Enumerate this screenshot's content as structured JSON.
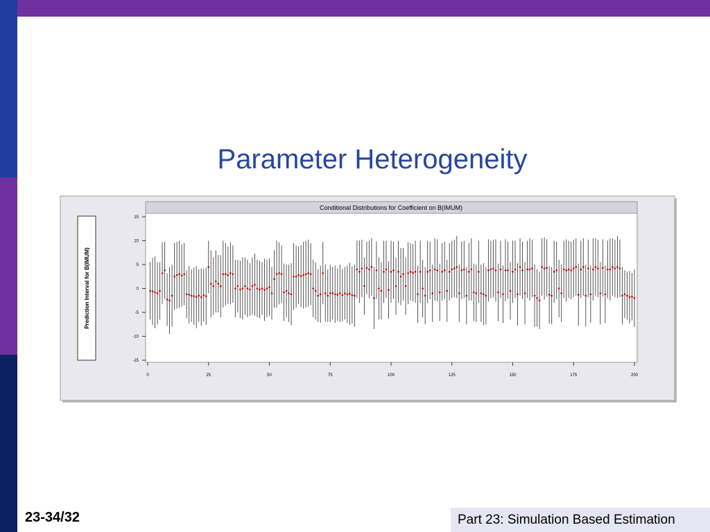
{
  "slide": {
    "title": "Parameter Heterogeneity",
    "page": "23-34/32",
    "footer": "Part 23: Simulation Based Estimation"
  },
  "chart_data": {
    "type": "errorbar",
    "title": "Conditional Distributions for Coefficient on B(IMUM)",
    "ylabel": "Prediction Interval for B(IMUM)",
    "color": "#404040",
    "marker_color": "#c00000",
    "xlim": [
      0,
      200
    ],
    "xticks": [
      0,
      25,
      50,
      75,
      100,
      125,
      150,
      175,
      200
    ],
    "ylim": [
      -15,
      15
    ],
    "yticks": [
      -15,
      -10,
      -5,
      0,
      5,
      10,
      15
    ],
    "x": [
      1,
      2,
      3,
      4,
      5,
      6,
      7,
      8,
      9,
      10,
      11,
      12,
      13,
      14,
      15,
      16,
      17,
      18,
      19,
      20,
      21,
      22,
      23,
      24,
      25,
      26,
      27,
      28,
      29,
      30,
      31,
      32,
      33,
      34,
      35,
      36,
      37,
      38,
      39,
      40,
      41,
      42,
      43,
      44,
      45,
      46,
      47,
      48,
      49,
      50,
      51,
      52,
      53,
      54,
      55,
      56,
      57,
      58,
      59,
      60,
      61,
      62,
      63,
      64,
      65,
      66,
      67,
      68,
      69,
      70,
      71,
      72,
      73,
      74,
      75,
      76,
      77,
      78,
      79,
      80,
      81,
      82,
      83,
      84,
      85,
      86,
      87,
      88,
      89,
      90,
      91,
      92,
      93,
      94,
      95,
      96,
      97,
      98,
      99,
      100,
      101,
      102,
      103,
      104,
      105,
      106,
      107,
      108,
      109,
      110,
      111,
      112,
      113,
      114,
      115,
      116,
      117,
      118,
      119,
      120,
      121,
      122,
      123,
      124,
      125,
      126,
      127,
      128,
      129,
      130,
      131,
      132,
      133,
      134,
      135,
      136,
      137,
      138,
      139,
      140,
      141,
      142,
      143,
      144,
      145,
      146,
      147,
      148,
      149,
      150,
      151,
      152,
      153,
      154,
      155,
      156,
      157,
      158,
      159,
      160,
      161,
      162,
      163,
      164,
      165,
      166,
      167,
      168,
      169,
      170,
      171,
      172,
      173,
      174,
      175,
      176,
      177,
      178,
      179,
      180,
      181,
      182,
      183,
      184,
      185,
      186,
      187,
      188,
      189,
      190,
      191,
      192,
      193,
      194,
      195,
      196,
      197,
      198,
      199,
      200
    ],
    "values": [
      -0.5,
      -0.6,
      -0.8,
      -1,
      -0.5,
      3.2,
      3.8,
      -2.3,
      -2.5,
      -1.5,
      2.5,
      2.8,
      3,
      2.7,
      3,
      -1.2,
      -1.3,
      -1.5,
      -1.6,
      -1.8,
      -1.5,
      -1.8,
      -1.4,
      -1.6,
      4.5,
      1,
      0.5,
      1.5,
      1,
      0.5,
      3,
      3,
      2.8,
      3.2,
      3,
      0,
      0.5,
      -0.2,
      0,
      0.5,
      0,
      -0.2,
      0.5,
      0.8,
      0,
      -0.2,
      0,
      -0.3,
      0,
      0.3,
      -1,
      2,
      3,
      3.2,
      3,
      -0.8,
      -0.5,
      -1,
      -1.2,
      2.5,
      2.5,
      2.8,
      2.6,
      2.8,
      3,
      3.2,
      3,
      0,
      -0.5,
      -1.5,
      -1.2,
      3.2,
      -1,
      -1.5,
      -1,
      -1,
      -1.2,
      -1.3,
      -1,
      -1.4,
      -1,
      -1.2,
      -1.1,
      -1.4,
      -1.5,
      4,
      3.5,
      4.2,
      0.5,
      4.3,
      4,
      4.5,
      -2,
      3.8,
      0,
      -0.5,
      3.5,
      4,
      -0.3,
      3.5,
      3.8,
      0.5,
      3.5,
      2.5,
      3,
      0.5,
      3.2,
      3.5,
      3.3,
      3.5,
      -1.2,
      3.5,
      0,
      -1.5,
      3.5,
      3.8,
      -1,
      4,
      3.8,
      -0.8,
      3.5,
      3.8,
      -0.5,
      3.5,
      4,
      4.2,
      4.5,
      -1,
      3.8,
      4,
      -1.5,
      3.5,
      4,
      -0.8,
      -1,
      3.5,
      -1,
      -1.2,
      -1.5,
      3.8,
      4,
      4.2,
      3.8,
      -0.8,
      4,
      -1.2,
      3.8,
      3.8,
      -0.5,
      3.5,
      4,
      -1.2,
      4.5,
      3.8,
      -1,
      4,
      4,
      4.2,
      -1.5,
      -2,
      -2.5,
      4.5,
      4.2,
      4.3,
      -1.3,
      -1.5,
      3.5,
      3.8,
      0,
      -1,
      4,
      3.8,
      4,
      3.8,
      4.2,
      4.5,
      -1.3,
      4,
      4.5,
      -1.5,
      4.2,
      -1.2,
      4,
      4.5,
      4.2,
      -1,
      4.3,
      -1.2,
      4,
      4,
      4.5,
      4.2,
      4.5,
      4.2,
      -1.5,
      -1.2,
      -1.5,
      -1.8,
      -1.7,
      -2
    ],
    "errors": [
      6,
      7,
      7.5,
      6.5,
      6,
      6.5,
      6,
      5.5,
      7,
      6.5,
      7,
      7,
      7,
      6.5,
      6.5,
      5,
      6,
      5.5,
      6,
      6.5,
      5.5,
      6,
      5.5,
      6,
      5.5,
      7,
      6,
      6.5,
      6,
      6.5,
      7,
      6.5,
      6,
      6.5,
      6,
      6,
      5.5,
      6,
      6.5,
      6,
      6,
      5.5,
      6,
      6.5,
      6,
      6,
      5.5,
      6.5,
      6,
      6,
      5.5,
      6,
      7,
      6.5,
      6,
      6,
      5.5,
      6,
      6.5,
      7,
      6.5,
      6,
      6.5,
      7,
      7,
      7,
      6.5,
      6,
      6,
      5.5,
      6,
      6.5,
      6,
      5.5,
      6,
      5.5,
      6,
      5.5,
      6,
      5.5,
      5.5,
      6,
      6.5,
      6,
      6.5,
      6,
      6.5,
      6,
      6,
      5.5,
      6,
      6,
      6.5,
      6,
      6.5,
      6,
      6.5,
      6,
      6,
      6.5,
      6,
      6,
      6.5,
      6,
      5.5,
      6,
      6.5,
      6,
      6,
      6.5,
      6,
      6.5,
      6,
      6,
      6.5,
      6,
      6,
      6.5,
      6.5,
      6,
      6,
      6,
      6.5,
      6,
      6,
      6,
      6.5,
      6,
      6,
      6,
      6,
      6,
      6.5,
      6,
      6,
      6.5,
      6,
      6.5,
      6,
      6.5,
      6,
      6,
      6.5,
      6,
      6,
      6,
      6.5,
      6,
      6,
      6.5,
      6,
      6.5,
      6,
      6,
      6.5,
      6,
      6.5,
      6,
      6.5,
      6,
      6,
      6,
      6.5,
      6,
      6,
      6,
      6.5,
      6,
      6,
      6,
      6,
      6.5,
      6,
      6,
      6,
      6,
      6.5,
      6,
      6,
      6.5,
      6,
      6,
      6.5,
      6,
      6,
      6.5,
      6,
      6,
      6,
      6.5,
      6,
      6,
      6.5,
      6,
      6,
      5,
      5,
      5.5,
      5,
      6
    ]
  }
}
